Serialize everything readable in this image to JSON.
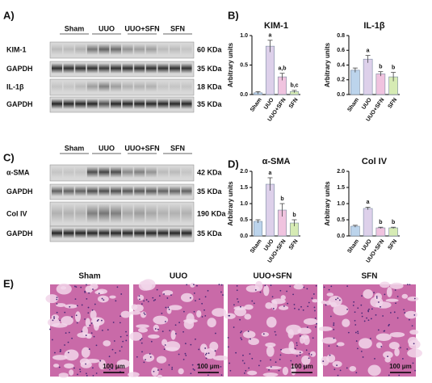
{
  "panel_labels": [
    "A)",
    "B)",
    "C)",
    "D)",
    "E)"
  ],
  "blots": [
    {
      "groups": [
        "Sham",
        "UUO",
        "UUO+SFN",
        "SFN"
      ],
      "rows": [
        {
          "label": "KIM-1",
          "size": "60 KDa"
        },
        {
          "label": "GAPDH",
          "size": "35 KDa"
        },
        {
          "label": "IL-1β",
          "size": "18 KDa"
        },
        {
          "label": "GAPDH",
          "size": "35 KDa"
        }
      ]
    },
    {
      "groups": [
        "Sham",
        "UUO",
        "UUO+SFN",
        "SFN"
      ],
      "rows": [
        {
          "label": "α-SMA",
          "size": "42 KDa"
        },
        {
          "label": "GAPDH",
          "size": "35 KDa"
        },
        {
          "label": "Col IV",
          "size": "190 KDa"
        },
        {
          "label": "GAPDH",
          "size": "35 KDa"
        }
      ]
    }
  ],
  "histology": {
    "titles": [
      "Sham",
      "UUO",
      "UUO+SFN",
      "SFN"
    ],
    "scale_bar": "100 μm"
  },
  "chart_data": [
    {
      "type": "bar",
      "title": "KIM-1",
      "ylabel": "Arbitrary units",
      "categories": [
        "Sham",
        "UUO",
        "UUO+SFN",
        "SFN"
      ],
      "values": [
        0.03,
        0.82,
        0.3,
        0.05
      ],
      "errors": [
        0.02,
        0.1,
        0.06,
        0.02
      ],
      "annotations": [
        null,
        "a",
        "a,b",
        "b,c"
      ],
      "colors": [
        "#bcd4ec",
        "#ddd0ea",
        "#f0c3df",
        "#d6ebb4"
      ],
      "ylim": [
        0,
        1
      ],
      "yticks": [
        {
          "value": 0,
          "label": "0.0"
        },
        0.5,
        {
          "value": 1,
          "label": "1.0"
        }
      ]
    },
    {
      "type": "bar",
      "title": "IL-1β",
      "ylabel": "Arbitrary units",
      "categories": [
        "Sham",
        "UUO",
        "UUO+SFN",
        "SFN"
      ],
      "values": [
        0.33,
        0.48,
        0.28,
        0.24
      ],
      "errors": [
        0.03,
        0.05,
        0.03,
        0.06
      ],
      "annotations": [
        null,
        "a",
        "b",
        "b"
      ],
      "colors": [
        "#bcd4ec",
        "#ddd0ea",
        "#f0c3df",
        "#d6ebb4"
      ],
      "ylim": [
        0,
        0.8
      ],
      "yticks": [
        {
          "value": 0,
          "label": "0.0"
        },
        0.2,
        0.4,
        0.6,
        0.8
      ]
    },
    {
      "type": "bar",
      "title": "α-SMA",
      "ylabel": "Arbitrary units",
      "categories": [
        "Sham",
        "UUO",
        "UUO+SFN",
        "SFN"
      ],
      "values": [
        0.45,
        1.6,
        0.8,
        0.4
      ],
      "errors": [
        0.05,
        0.2,
        0.2,
        0.1
      ],
      "annotations": [
        null,
        "a",
        "b",
        "b"
      ],
      "colors": [
        "#bcd4ec",
        "#ddd0ea",
        "#f0c3df",
        "#d6ebb4"
      ],
      "ylim": [
        0,
        2
      ],
      "yticks": [
        {
          "value": 0,
          "label": "0.0"
        },
        0.5,
        {
          "value": 1,
          "label": "1.0"
        },
        1.5,
        {
          "value": 2,
          "label": "2.0"
        }
      ]
    },
    {
      "type": "bar",
      "title": "Col IV",
      "ylabel": "Arbitrary units",
      "categories": [
        "Sham",
        "UUO",
        "UUO+SFN",
        "SFN"
      ],
      "values": [
        0.3,
        0.85,
        0.25,
        0.25
      ],
      "errors": [
        0.03,
        0.04,
        0.02,
        0.02
      ],
      "annotations": [
        null,
        "a",
        "b",
        "b"
      ],
      "colors": [
        "#bcd4ec",
        "#ddd0ea",
        "#f0c3df",
        "#d6ebb4"
      ],
      "ylim": [
        0,
        2
      ],
      "yticks": [
        {
          "value": 0,
          "label": "0.0"
        },
        0.5,
        {
          "value": 1,
          "label": "1.0"
        },
        1.5,
        {
          "value": 2,
          "label": "2.0"
        }
      ]
    }
  ]
}
